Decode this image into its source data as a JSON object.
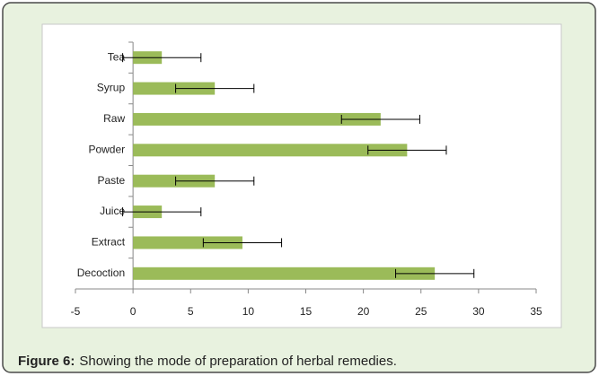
{
  "chart_data": {
    "type": "bar",
    "orientation": "horizontal",
    "categories": [
      "Tea",
      "Syrup",
      "Raw",
      "Powder",
      "Paste",
      "Juice",
      "Extract",
      "Decoction"
    ],
    "values": [
      2.5,
      7.1,
      21.5,
      23.8,
      7.1,
      2.5,
      9.5,
      26.2
    ],
    "errors": [
      3.4,
      3.4,
      3.4,
      3.4,
      3.4,
      3.4,
      3.4,
      3.4
    ],
    "color": "#9bbb59",
    "xlim": [
      -5,
      35
    ],
    "xticks": [
      -5,
      0,
      5,
      10,
      15,
      20,
      25,
      30,
      35
    ],
    "grid": false
  },
  "caption": {
    "label": "Figure 6:",
    "text": "Showing the mode of preparation of herbal remedies."
  }
}
